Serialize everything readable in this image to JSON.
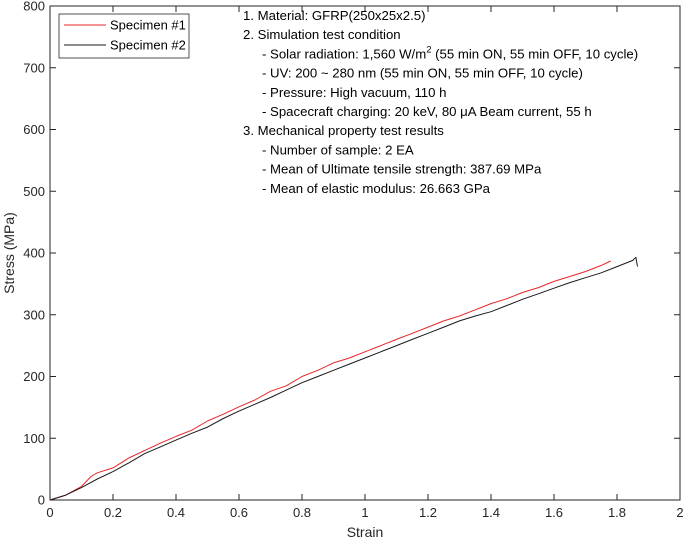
{
  "chart_data": {
    "type": "line",
    "xlabel": "Strain",
    "ylabel": "Stress (MPa)",
    "xlim": [
      0,
      2
    ],
    "ylim": [
      0,
      800
    ],
    "xticks": [
      0,
      0.2,
      0.4,
      0.6,
      0.8,
      1,
      1.2,
      1.4,
      1.6,
      1.8,
      2
    ],
    "xtick_labels": [
      "0",
      "0.2",
      "0.4",
      "0.6",
      "0.8",
      "1",
      "1.2",
      "1.4",
      "1.6",
      "1.8",
      "2"
    ],
    "yticks": [
      0,
      100,
      200,
      300,
      400,
      500,
      600,
      700,
      800
    ],
    "ytick_labels": [
      "0",
      "100",
      "200",
      "300",
      "400",
      "500",
      "600",
      "700",
      "800"
    ],
    "grid": false,
    "legend_position": "top-left",
    "series": [
      {
        "name": "Specimen #1",
        "color": "#e8262a",
        "x": [
          0,
          0.05,
          0.1,
          0.13,
          0.15,
          0.2,
          0.25,
          0.3,
          0.35,
          0.4,
          0.45,
          0.5,
          0.55,
          0.6,
          0.65,
          0.7,
          0.75,
          0.8,
          0.85,
          0.9,
          0.95,
          1.0,
          1.05,
          1.1,
          1.15,
          1.2,
          1.25,
          1.3,
          1.35,
          1.4,
          1.45,
          1.5,
          1.55,
          1.6,
          1.65,
          1.7,
          1.75,
          1.78
        ],
        "y": [
          0,
          8,
          22,
          38,
          44,
          52,
          68,
          80,
          92,
          103,
          113,
          128,
          139,
          151,
          162,
          176,
          185,
          200,
          210,
          222,
          230,
          240,
          250,
          260,
          270,
          280,
          290,
          298,
          308,
          318,
          326,
          336,
          344,
          354,
          362,
          370,
          380,
          387
        ]
      },
      {
        "name": "Specimen #2",
        "color": "#1a1a1a",
        "x": [
          0,
          0.05,
          0.1,
          0.15,
          0.2,
          0.25,
          0.3,
          0.35,
          0.4,
          0.45,
          0.5,
          0.55,
          0.6,
          0.65,
          0.7,
          0.75,
          0.8,
          0.85,
          0.9,
          0.95,
          1.0,
          1.05,
          1.1,
          1.15,
          1.2,
          1.25,
          1.3,
          1.35,
          1.4,
          1.45,
          1.5,
          1.55,
          1.6,
          1.65,
          1.7,
          1.75,
          1.8,
          1.85,
          1.86,
          1.865
        ],
        "y": [
          0,
          8,
          20,
          34,
          46,
          60,
          75,
          86,
          97,
          108,
          118,
          132,
          144,
          155,
          166,
          178,
          190,
          200,
          210,
          220,
          230,
          240,
          250,
          260,
          270,
          280,
          290,
          298,
          305,
          315,
          325,
          334,
          343,
          352,
          360,
          368,
          378,
          388,
          393,
          378
        ]
      }
    ],
    "annotations": [
      {
        "text": "1. Material: GFRP(250x25x2.5)",
        "indent": 0
      },
      {
        "text": "2. Simulation test condition",
        "indent": 0
      },
      {
        "text": "- Solar radiation: 1,560 W/m",
        "sup": "2",
        "tail": " (55 min ON, 55 min OFF, 10 cycle)",
        "indent": 1
      },
      {
        "text": "- UV: 200 ~ 280 nm (55 min ON, 55 min OFF, 10 cycle)",
        "indent": 1
      },
      {
        "text": "- Pressure: High vacuum, 110 h",
        "indent": 1
      },
      {
        "text": "- Spacecraft charging: 20 keV, 80 μA Beam current, 55 h",
        "indent": 1
      },
      {
        "text": "3. Mechanical property test results",
        "indent": 0
      },
      {
        "text": "- Number of sample: 2 EA",
        "indent": 1
      },
      {
        "text": "- Mean of Ultimate tensile strength: 387.69 MPa",
        "indent": 1
      },
      {
        "text": "- Mean of elastic modulus: 26.663 GPa",
        "indent": 1
      }
    ]
  }
}
